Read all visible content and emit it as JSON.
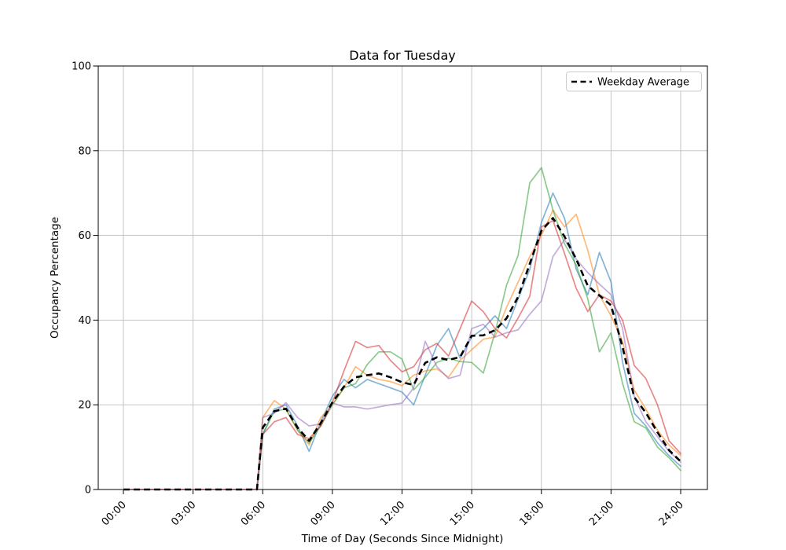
{
  "title": "Data for Tuesday",
  "axes": {
    "xlabel": "Time of Day (Seconds Since Midnight)",
    "ylabel": "Occupancy Percentage",
    "x_ticks": [
      {
        "label": "00:00",
        "seconds": 0
      },
      {
        "label": "03:00",
        "seconds": 10800
      },
      {
        "label": "06:00",
        "seconds": 21600
      },
      {
        "label": "09:00",
        "seconds": 32400
      },
      {
        "label": "12:00",
        "seconds": 43200
      },
      {
        "label": "15:00",
        "seconds": 54000
      },
      {
        "label": "18:00",
        "seconds": 64800
      },
      {
        "label": "21:00",
        "seconds": 75600
      },
      {
        "label": "24:00",
        "seconds": 86400
      }
    ],
    "y_ticks": [
      0,
      20,
      40,
      60,
      80,
      100
    ],
    "ylim": [
      0,
      100
    ],
    "xlim_seconds": [
      0,
      86400
    ],
    "grid": true,
    "grid_color": "#bdbdbd",
    "spine_color": "#000000"
  },
  "legend": {
    "label": "Weekday Average",
    "position": "upper right",
    "line_style": "dashed",
    "line_color": "#000000"
  },
  "chart_data": {
    "type": "line",
    "x_seconds": [
      0,
      1800,
      3600,
      5400,
      7200,
      9000,
      10800,
      12600,
      14400,
      16200,
      18000,
      19800,
      20700,
      21600,
      23400,
      25200,
      27000,
      28800,
      30600,
      32400,
      34200,
      36000,
      37800,
      39600,
      41400,
      43200,
      45000,
      46800,
      48600,
      50400,
      52200,
      54000,
      55800,
      57600,
      59400,
      61200,
      63000,
      64800,
      66600,
      68400,
      70200,
      72000,
      73800,
      75600,
      77400,
      79200,
      81000,
      82800,
      84600,
      86400
    ],
    "series": [
      {
        "name": "series-1",
        "color": "#1f77b4",
        "opacity": 0.55,
        "values": [
          0,
          0,
          0,
          0,
          0,
          0,
          0,
          0,
          0,
          0,
          0,
          0,
          0,
          13,
          19,
          20,
          15,
          9,
          16,
          22,
          26,
          24,
          26,
          25,
          24,
          23,
          20,
          27,
          34,
          38,
          31,
          36,
          38,
          41,
          38,
          45,
          52,
          63,
          70,
          64,
          52,
          46,
          56,
          49,
          30,
          18,
          15,
          11,
          8,
          5.5
        ]
      },
      {
        "name": "series-2",
        "color": "#ff7f0e",
        "opacity": 0.55,
        "values": [
          0,
          0,
          0,
          0,
          0,
          0,
          0,
          0,
          0,
          0,
          0,
          0,
          0,
          17,
          21,
          19,
          14,
          10.5,
          17,
          20,
          24,
          29,
          27,
          26,
          25.5,
          24.5,
          27,
          28,
          28.5,
          26.5,
          30.5,
          33,
          35.5,
          36,
          43,
          49,
          55,
          60,
          66,
          62,
          65,
          56.5,
          46,
          41,
          35,
          23.5,
          19,
          14,
          10.5,
          8
        ]
      },
      {
        "name": "series-3",
        "color": "#2ca02c",
        "opacity": 0.55,
        "values": [
          0,
          0,
          0,
          0,
          0,
          0,
          0,
          0,
          0,
          0,
          0,
          0,
          0,
          13,
          18.5,
          19,
          14,
          11,
          15,
          20,
          24,
          25,
          29.5,
          32.5,
          32.5,
          30.8,
          23.5,
          26.5,
          30,
          31,
          30.2,
          30,
          27.5,
          37,
          48.2,
          55.3,
          72.4,
          76,
          66,
          58,
          53,
          45,
          32.5,
          37,
          25,
          16,
          14.5,
          10,
          7.5,
          4.5
        ]
      },
      {
        "name": "series-4",
        "color": "#d62728",
        "opacity": 0.55,
        "values": [
          0,
          0,
          0,
          0,
          0,
          0,
          0,
          0,
          0,
          0,
          0,
          0,
          0,
          13,
          16,
          17,
          13,
          12,
          15,
          20.5,
          28,
          35,
          33.5,
          34,
          30.5,
          27.8,
          29,
          33,
          34.5,
          31.5,
          38,
          44.5,
          42,
          38,
          35.8,
          40.5,
          45.6,
          62,
          63.5,
          55.7,
          47.5,
          42,
          46,
          44.5,
          40,
          29.3,
          26.2,
          20,
          11.5,
          8.5
        ]
      },
      {
        "name": "series-5",
        "color": "#9467bd",
        "opacity": 0.55,
        "values": [
          0,
          0,
          0,
          0,
          0,
          0,
          0,
          0,
          0,
          0,
          0,
          0,
          0,
          17,
          18,
          20.5,
          17,
          15,
          15.5,
          20.5,
          19.5,
          19.5,
          19,
          19.5,
          20,
          20.4,
          24,
          35,
          29,
          26.2,
          27,
          38,
          39,
          36,
          37,
          37.7,
          41.4,
          44.5,
          55,
          59,
          54.4,
          51.2,
          48.5,
          46,
          38,
          22,
          16,
          12.5,
          9,
          6.5
        ]
      }
    ],
    "average": {
      "name": "Weekday Average",
      "color": "#000000",
      "dashed": true,
      "values": [
        0,
        0,
        0,
        0,
        0,
        0,
        0,
        0,
        0,
        0,
        0,
        0,
        0,
        14.6,
        18.5,
        19.1,
        14.6,
        11.5,
        15.7,
        20.6,
        24.3,
        26.5,
        27,
        27.4,
        26.5,
        25.3,
        24.7,
        29.9,
        31.2,
        30.6,
        31.3,
        36.3,
        36.4,
        37.6,
        40.4,
        45.5,
        53.3,
        61.1,
        64.1,
        59.7,
        54.4,
        48.1,
        45.8,
        43.5,
        33.6,
        21.8,
        18.1,
        13.5,
        9.3,
        6.6
      ]
    }
  }
}
